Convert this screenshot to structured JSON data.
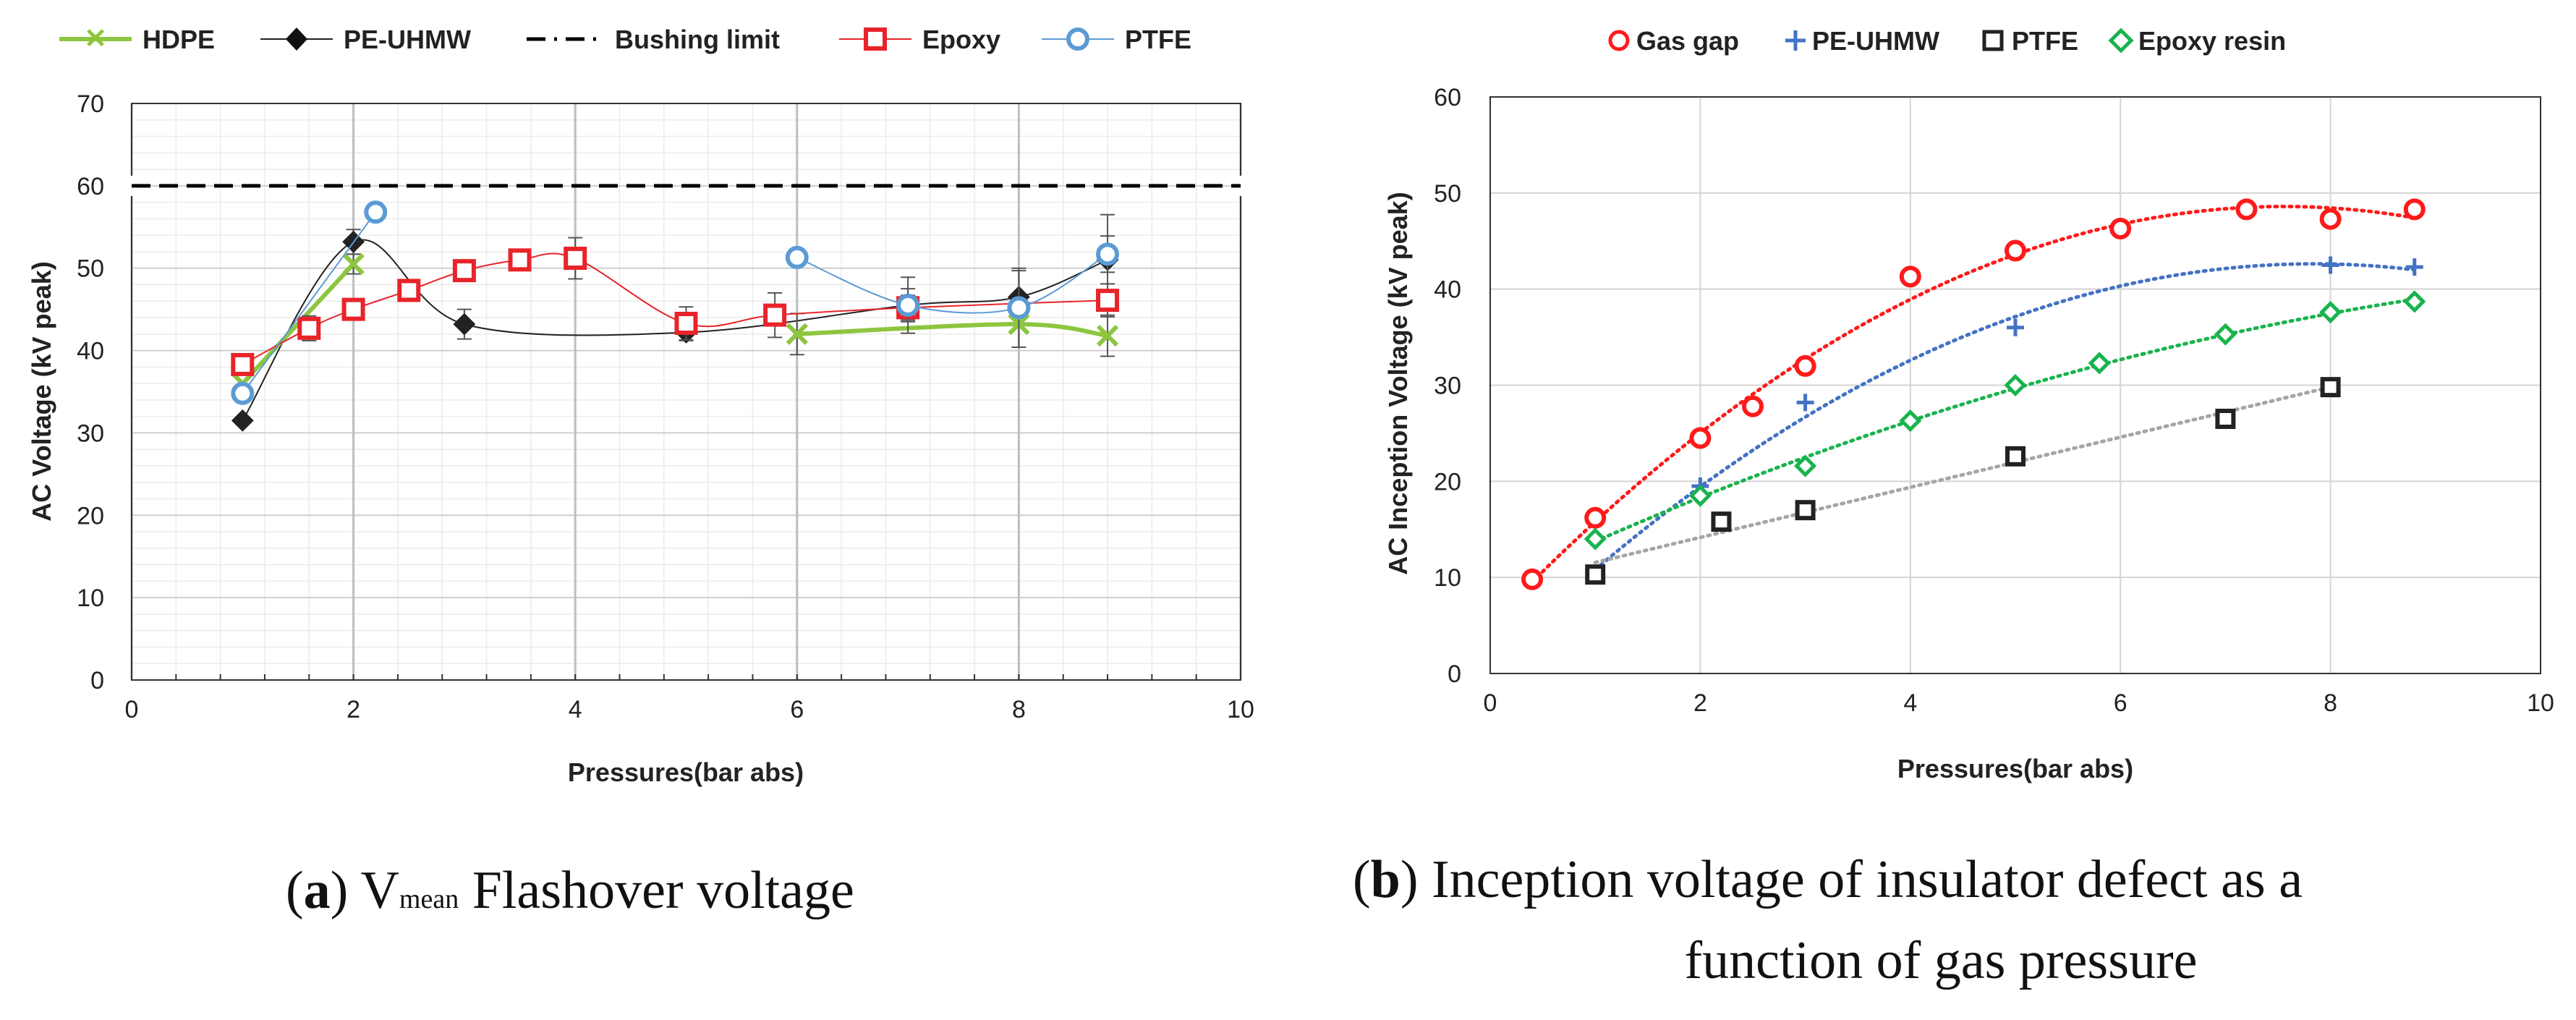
{
  "colors": {
    "hdpe": "#8cc63f",
    "pe_uhmw_a": "#222222",
    "bushing": "#000000",
    "epoxy_a": "#e8242a",
    "ptfe_a": "#5b9bd5",
    "gas_gap": "#ff1a1a",
    "pe_uhmw_b": "#4472c4",
    "ptfe_b": "#222222",
    "epoxy_b": "#19b34d",
    "ptfe_b_trend": "#a6a6a6"
  },
  "captions": {
    "a_letter": "a",
    "a_sub": "mean",
    "a_pre": "V",
    "a_rest": " Flashover voltage",
    "b_letter": "b",
    "b_line1": " Inception voltage of insulator defect as a",
    "b_line2": "function of gas pressure"
  },
  "chart_data": [
    {
      "id": "a",
      "type": "line",
      "title": "V mean Flashover voltage",
      "xlabel": "Pressures(bar abs)",
      "ylabel": "AC Voltage (kV peak)",
      "xlim": [
        0,
        10
      ],
      "ylim": [
        0,
        70
      ],
      "xticks": [
        0,
        2,
        4,
        6,
        8,
        10
      ],
      "yticks": [
        0,
        10,
        20,
        30,
        40,
        50,
        60,
        70
      ],
      "legend": [
        "HDPE",
        "PE-UHMW",
        "Bushing limit",
        "Epoxy",
        "PTFE"
      ],
      "legend_position": "top",
      "series": [
        {
          "name": "HDPE",
          "marker": "x",
          "x": [
            1,
            2,
            6,
            8,
            8.8
          ],
          "y": [
            36,
            50.5,
            42,
            43.2,
            41.8
          ],
          "err": [
            0,
            1.2,
            2.5,
            2.8,
            2.5
          ]
        },
        {
          "name": "PE-UHMW",
          "marker": "diamond",
          "x": [
            1,
            2,
            3,
            5,
            7,
            8,
            8.8
          ],
          "y": [
            31.5,
            53.2,
            43.2,
            42.2,
            45.5,
            46.5,
            51
          ],
          "err": [
            0,
            1.5,
            1.8,
            1,
            2,
            3.2,
            5.5
          ]
        },
        {
          "name": "Bushing limit",
          "marker": "none",
          "x": [
            0,
            10
          ],
          "y": [
            60,
            60
          ]
        },
        {
          "name": "Epoxy",
          "marker": "square",
          "x": [
            1,
            1.6,
            2,
            2.5,
            3,
            3.5,
            4,
            5,
            5.8,
            7,
            8.8
          ],
          "y": [
            38.3,
            42.7,
            45,
            47.3,
            49.7,
            51,
            51.2,
            43.3,
            44.3,
            45.2,
            46.1
          ],
          "err": [
            0,
            1.5,
            0,
            1,
            1,
            1,
            2.5,
            2,
            2.7,
            1.5,
            2
          ]
        },
        {
          "name": "PTFE",
          "marker": "circle",
          "x": [
            1,
            2.2,
            6,
            7,
            8,
            8.8
          ],
          "y": [
            34.8,
            56.8,
            51.3,
            45.5,
            45.2,
            51.7
          ],
          "err": [
            0,
            0,
            0,
            3.4,
            4.8,
            2.2
          ]
        }
      ]
    },
    {
      "id": "b",
      "type": "scatter",
      "title": "Inception voltage of insulator defect as a function of gas pressure",
      "xlabel": "Pressures(bar abs)",
      "ylabel": "AC  Inception Voltage (kV peak)",
      "xlim": [
        0,
        10
      ],
      "ylim": [
        0,
        60
      ],
      "xticks": [
        0,
        2,
        4,
        6,
        8,
        10
      ],
      "yticks": [
        0,
        10,
        20,
        30,
        40,
        50,
        60
      ],
      "legend": [
        "Gas gap",
        "PE-UHMW",
        "PTFE",
        "Epoxy resin"
      ],
      "legend_position": "top",
      "series": [
        {
          "name": "Gas gap",
          "marker": "circle",
          "x": [
            0.4,
            1,
            2,
            2.5,
            3,
            4,
            5,
            6,
            7.2,
            8,
            8.8
          ],
          "y": [
            9.8,
            16.2,
            24.5,
            27.8,
            32,
            41.3,
            44,
            46.3,
            48.3,
            47.3,
            48.3
          ],
          "trend": [
            0.4,
            1,
            2,
            3,
            4,
            5,
            6,
            7,
            8,
            8.8
          ]
        },
        {
          "name": "PE-UHMW",
          "marker": "plus",
          "x": [
            1,
            2,
            3,
            5,
            8,
            8.8
          ],
          "y": [
            10.2,
            19.5,
            28.2,
            36,
            42.5,
            42.3
          ]
        },
        {
          "name": "PTFE",
          "marker": "square",
          "x": [
            1,
            2.2,
            3,
            5,
            7,
            8
          ],
          "y": [
            10.3,
            15.8,
            17,
            22.6,
            26.5,
            29.8
          ]
        },
        {
          "name": "Epoxy resin",
          "marker": "diamond",
          "x": [
            1,
            2,
            3,
            4,
            5,
            5.8,
            7,
            8,
            8.8
          ],
          "y": [
            14,
            18.5,
            21.6,
            26.3,
            30,
            32.3,
            35.3,
            37.6,
            38.7
          ]
        }
      ]
    }
  ]
}
